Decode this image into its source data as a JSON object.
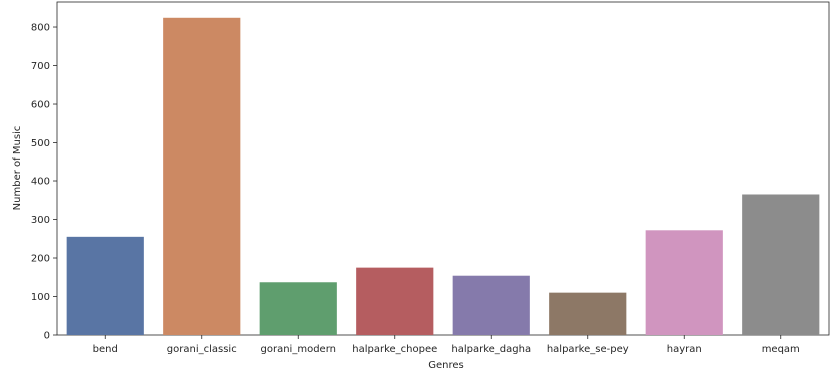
{
  "chart_data": {
    "type": "bar",
    "xlabel": "Genres",
    "ylabel": "Number of Music",
    "categories": [
      "bend",
      "gorani_classic",
      "gorani_modern",
      "halparke_chopee",
      "halparke_dagha",
      "halparke_se-pey",
      "hayran",
      "meqam"
    ],
    "values": [
      255,
      824,
      137,
      175,
      154,
      110,
      272,
      365
    ],
    "ylim": [
      0,
      865
    ],
    "yticks": [
      0,
      100,
      200,
      300,
      400,
      500,
      600,
      700,
      800
    ],
    "colors": [
      "#5975a4",
      "#cc8963",
      "#5f9e6e",
      "#b55d60",
      "#857aab",
      "#8d7866",
      "#d095bf",
      "#8c8c8c"
    ],
    "grid": false,
    "legend": "none"
  }
}
